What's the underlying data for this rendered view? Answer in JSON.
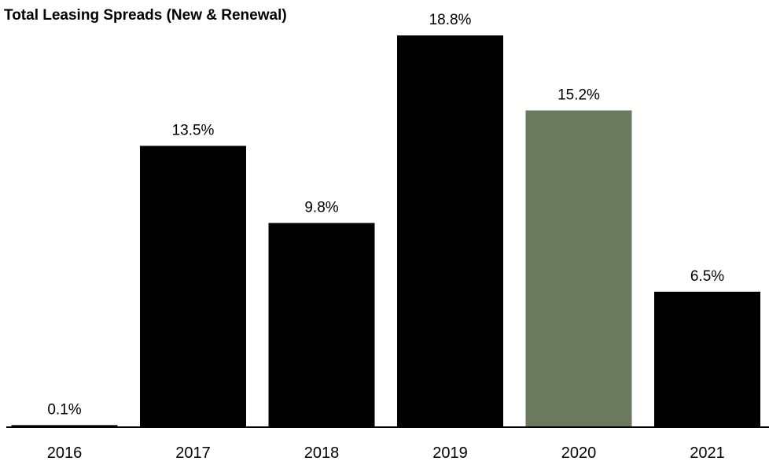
{
  "chart_data": {
    "type": "bar",
    "title": "Total Leasing Spreads (New & Renewal)",
    "categories": [
      "2016",
      "2017",
      "2018",
      "2019",
      "2020",
      "2021"
    ],
    "values": [
      0.1,
      13.5,
      9.8,
      18.8,
      15.2,
      6.5
    ],
    "data_labels": [
      "0.1%",
      "13.5%",
      "9.8%",
      "18.8%",
      "15.2%",
      "6.5%"
    ],
    "ylim": [
      0,
      18.8
    ],
    "grid": false,
    "colors": {
      "default": "#000000",
      "highlight": "#6b7a5f"
    },
    "highlight_category": "2020"
  }
}
